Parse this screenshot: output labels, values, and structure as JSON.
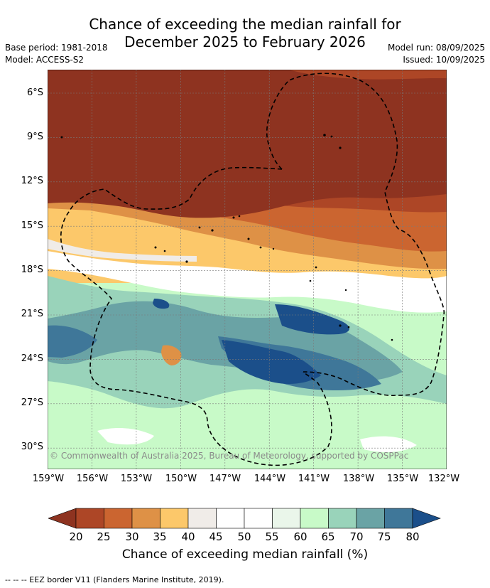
{
  "title_line1": "Chance of exceeding the median rainfall for",
  "title_line2": "December 2025 to February 2026",
  "base_period": "Base period: 1981-2018",
  "model": "Model: ACCESS-S2",
  "model_run": "Model run: 08/09/2025",
  "issued": "Issued: 10/09/2025",
  "copyright": "© Commonwealth of Australia 2025, Bureau of Meteorology, supported by COSPPac",
  "lat_labels": [
    "6°S",
    "9°S",
    "12°S",
    "15°S",
    "18°S",
    "21°S",
    "24°S",
    "27°S",
    "30°S"
  ],
  "lon_labels": [
    "159°W",
    "156°W",
    "153°W",
    "150°W",
    "147°W",
    "144°W",
    "141°W",
    "138°W",
    "135°W",
    "132°W"
  ],
  "colorbar": {
    "ticks": [
      "20",
      "25",
      "30",
      "35",
      "40",
      "45",
      "50",
      "55",
      "60",
      "65",
      "70",
      "75",
      "80"
    ],
    "colors": [
      "#8e3320",
      "#ad4626",
      "#cb6530",
      "#de9146",
      "#fcc86a",
      "#f0ece8",
      "#ffffff",
      "#ffffff",
      "#eaf6ea",
      "#c8fac8",
      "#99d3ba",
      "#6aa3a5",
      "#3f7799",
      "#1b4f8a"
    ],
    "label": "Chance of exceeding median rainfall (%)"
  },
  "footnote": "--  --  -- EEZ border V11 (Flanders Marine Institute, 2019)."
}
